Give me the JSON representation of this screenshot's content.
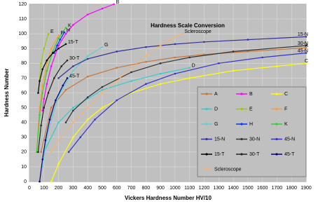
{
  "chart_data": {
    "type": "line",
    "title": "Hardness Scale Conversion",
    "x_label": "Vickers Hardness Number HV/10",
    "y_label": "Hardness Number",
    "xlim": [
      0,
      1900
    ],
    "ylim": [
      0,
      120
    ],
    "xticks": [
      0,
      100,
      200,
      300,
      400,
      500,
      600,
      700,
      800,
      900,
      1000,
      1100,
      1200,
      1300,
      1400,
      1500,
      1600,
      1700,
      1800,
      1900
    ],
    "yticks": [
      0,
      10,
      20,
      30,
      40,
      50,
      60,
      70,
      80,
      90,
      100,
      110,
      120
    ],
    "grid": true,
    "series": [
      {
        "name": "A",
        "color": "#c8763a",
        "x": [
          80,
          150,
          250,
          400,
          600,
          800,
          1000,
          1200,
          1500,
          1900
        ],
        "values": [
          20,
          50,
          62,
          71,
          77,
          81,
          84,
          86,
          88,
          90.5
        ]
      },
      {
        "name": "B",
        "color": "#ff00ff",
        "x": [
          90,
          100,
          120,
          150,
          200,
          250,
          300,
          400,
          500,
          580
        ],
        "values": [
          48,
          56,
          66,
          78,
          92,
          100,
          106,
          113,
          117,
          120
        ]
      },
      {
        "name": "C",
        "color": "#ffff00",
        "x": [
          150,
          200,
          300,
          400,
          500,
          700,
          900,
          1100,
          1400,
          1700,
          1900
        ],
        "values": [
          0,
          12,
          30,
          42,
          50,
          60,
          66,
          70,
          75,
          78,
          80
        ]
      },
      {
        "name": "D",
        "color": "#33cccc",
        "x": [
          100,
          200,
          300,
          500,
          700,
          900,
          1100
        ],
        "values": [
          20,
          40,
          50,
          62,
          68,
          73,
          77
        ]
      },
      {
        "name": "E",
        "color": "#99cc00",
        "x": [
          60,
          80,
          100,
          130
        ],
        "values": [
          60,
          80,
          90,
          100
        ]
      },
      {
        "name": "F",
        "color": "#ff9933",
        "x": [
          50,
          70,
          90,
          120,
          150,
          200
        ],
        "values": [
          20,
          50,
          65,
          80,
          90,
          99
        ]
      },
      {
        "name": "G",
        "color": "#66cccc",
        "x": [
          90,
          120,
          160,
          200,
          300,
          400,
          500
        ],
        "values": [
          10,
          30,
          45,
          58,
          75,
          85,
          91
        ]
      },
      {
        "name": "H",
        "color": "#0033ff",
        "x": [
          170,
          190,
          210,
          240
        ],
        "values": [
          87,
          92,
          96,
          101
        ]
      },
      {
        "name": "K",
        "color": "#33cc33",
        "x": [
          50,
          70,
          90,
          120,
          160,
          200,
          250
        ],
        "values": [
          20,
          45,
          60,
          75,
          88,
          97,
          104
        ]
      },
      {
        "name": "15-N",
        "color": "#333399",
        "x": [
          200,
          300,
          400,
          600,
          800,
          1000,
          1200,
          1500,
          1900
        ],
        "values": [
          70,
          78,
          83,
          88,
          91,
          93,
          94.5,
          96,
          98
        ]
      },
      {
        "name": "30-N",
        "color": "#333333",
        "x": [
          250,
          300,
          400,
          500,
          700,
          900,
          1100,
          1400,
          1900
        ],
        "values": [
          40,
          48,
          57,
          64,
          74,
          80,
          84,
          88,
          92
        ]
      },
      {
        "name": "45-N",
        "color": "#3333cc",
        "x": [
          270,
          350,
          450,
          600,
          800,
          1000,
          1300,
          1600,
          1900
        ],
        "values": [
          20,
          30,
          42,
          55,
          66,
          73,
          80,
          84,
          87
        ]
      },
      {
        "name": "15-T",
        "color": "#000000",
        "x": [
          60,
          70,
          90,
          120,
          160,
          200,
          250
        ],
        "values": [
          60,
          68,
          76,
          82,
          87,
          90,
          93
        ]
      },
      {
        "name": "30-T",
        "color": "#222222",
        "x": [
          60,
          80,
          100,
          130,
          170,
          220,
          260
        ],
        "values": [
          20,
          38,
          50,
          60,
          70,
          78,
          82
        ]
      },
      {
        "name": "45-T",
        "color": "#000080",
        "x": [
          70,
          90,
          110,
          140,
          180,
          230,
          260
        ],
        "values": [
          0,
          15,
          28,
          42,
          55,
          65,
          70
        ]
      },
      {
        "name": "Scleroscope",
        "color": "#ffb066",
        "x": [
          150,
          200,
          300,
          400,
          500,
          600,
          700,
          800,
          900,
          1000,
          1050
        ],
        "values": [
          20,
          28,
          40,
          50,
          60,
          68,
          77,
          85,
          92,
          98,
          100
        ]
      }
    ]
  }
}
